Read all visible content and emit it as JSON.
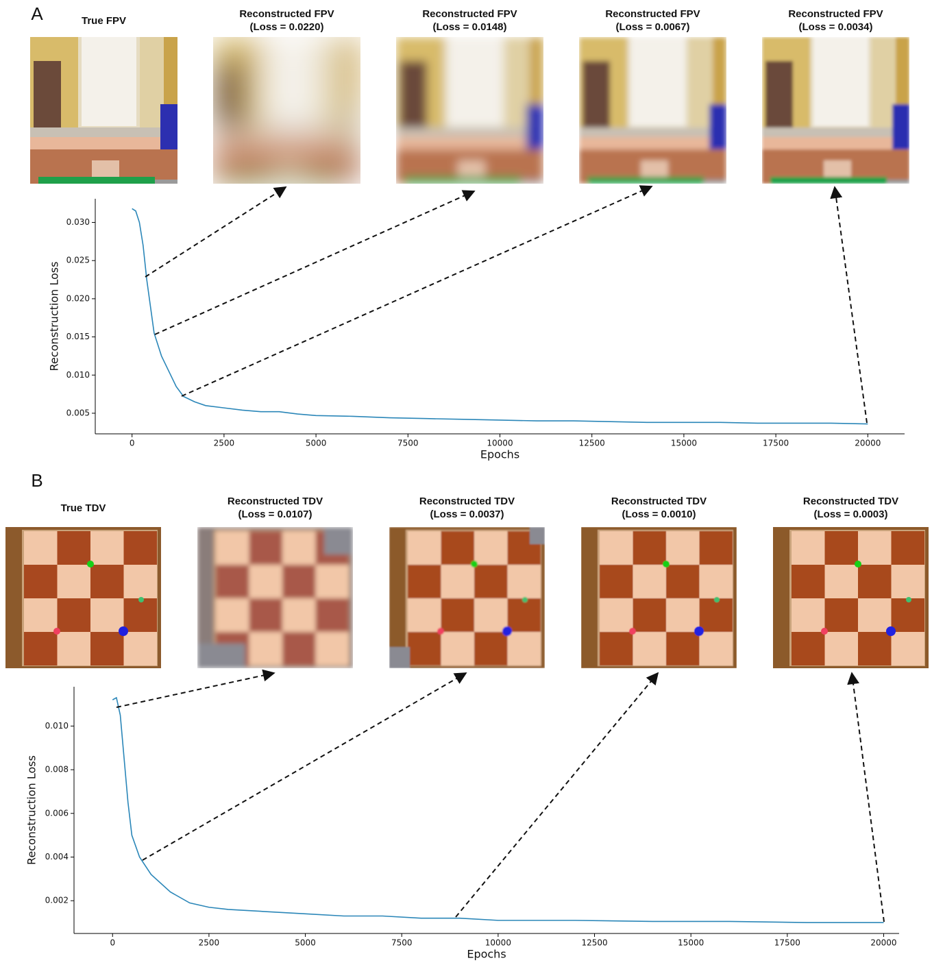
{
  "chart_data": [
    {
      "type": "line",
      "panel": "A",
      "image_titles": [
        [
          "True FPV"
        ],
        [
          "Reconstructed FPV",
          "(Loss = 0.0220)"
        ],
        [
          "Reconstructed FPV",
          "(Loss = 0.0148)"
        ],
        [
          "Reconstructed FPV",
          "(Loss = 0.0067)"
        ],
        [
          "Reconstructed FPV",
          "(Loss = 0.0034)"
        ]
      ],
      "xlabel": "Epochs",
      "ylabel": "Reconstruction Loss",
      "x": [
        0,
        100,
        200,
        300,
        400,
        500,
        600,
        800,
        1000,
        1200,
        1400,
        1700,
        2000,
        2500,
        3000,
        3500,
        4000,
        4500,
        5000,
        6000,
        7000,
        8000,
        9000,
        10000,
        11000,
        12000,
        13000,
        14000,
        15000,
        16000,
        17000,
        18000,
        19000,
        20000
      ],
      "series": [
        {
          "color": "#2a86b8",
          "values": [
            0.0318,
            0.0315,
            0.03,
            0.027,
            0.0225,
            0.019,
            0.0155,
            0.0125,
            0.0105,
            0.0085,
            0.0072,
            0.0065,
            0.006,
            0.0057,
            0.0054,
            0.0052,
            0.0052,
            0.0049,
            0.0047,
            0.0046,
            0.0044,
            0.0043,
            0.0042,
            0.0041,
            0.004,
            0.004,
            0.0039,
            0.0038,
            0.0038,
            0.0038,
            0.0037,
            0.0037,
            0.0037,
            0.0036
          ]
        }
      ],
      "xlim": [
        -1000,
        21000
      ],
      "ylim": [
        0.0023,
        0.0331
      ],
      "xticks": [
        0,
        2500,
        5000,
        7500,
        10000,
        12500,
        15000,
        17500,
        20000
      ],
      "yticks": [
        0.005,
        {
          "value": 0.01,
          "label": "0.010"
        },
        0.015,
        {
          "value": 0.02,
          "label": "0.020"
        },
        0.025,
        {
          "value": 0.03,
          "label": "0.030"
        }
      ]
    },
    {
      "type": "line",
      "panel": "B",
      "image_titles": [
        [
          "True TDV"
        ],
        [
          "Reconstructed TDV",
          "(Loss = 0.0107)"
        ],
        [
          "Reconstructed TDV",
          "(Loss = 0.0037)"
        ],
        [
          "Reconstructed TDV",
          "(Loss = 0.0010)"
        ],
        [
          "Reconstructed TDV",
          "(Loss = 0.0003)"
        ]
      ],
      "xlabel": "Epochs",
      "ylabel": "Reconstruction Loss",
      "x": [
        0,
        100,
        200,
        300,
        400,
        500,
        700,
        1000,
        1500,
        2000,
        2500,
        3000,
        4000,
        5000,
        6000,
        7000,
        8000,
        9000,
        10000,
        12000,
        14000,
        16000,
        18000,
        20000
      ],
      "series": [
        {
          "color": "#2a86b8",
          "values": [
            0.0112,
            0.0113,
            0.0105,
            0.0085,
            0.0065,
            0.005,
            0.004,
            0.0032,
            0.0024,
            0.0019,
            0.0017,
            0.0016,
            0.0015,
            0.0014,
            0.0013,
            0.0013,
            0.0012,
            0.0012,
            0.0011,
            0.0011,
            0.00105,
            0.00105,
            0.001,
            0.001
          ]
        }
      ],
      "xlim": [
        -1000,
        20400
      ],
      "ylim": [
        0.0005,
        0.0118
      ],
      "xticks": [
        0,
        2500,
        5000,
        7500,
        10000,
        12500,
        15000,
        17500,
        20000
      ],
      "yticks": [
        0.002,
        0.004,
        0.006,
        0.008,
        {
          "value": 0.01,
          "label": "0.010"
        }
      ]
    }
  ]
}
